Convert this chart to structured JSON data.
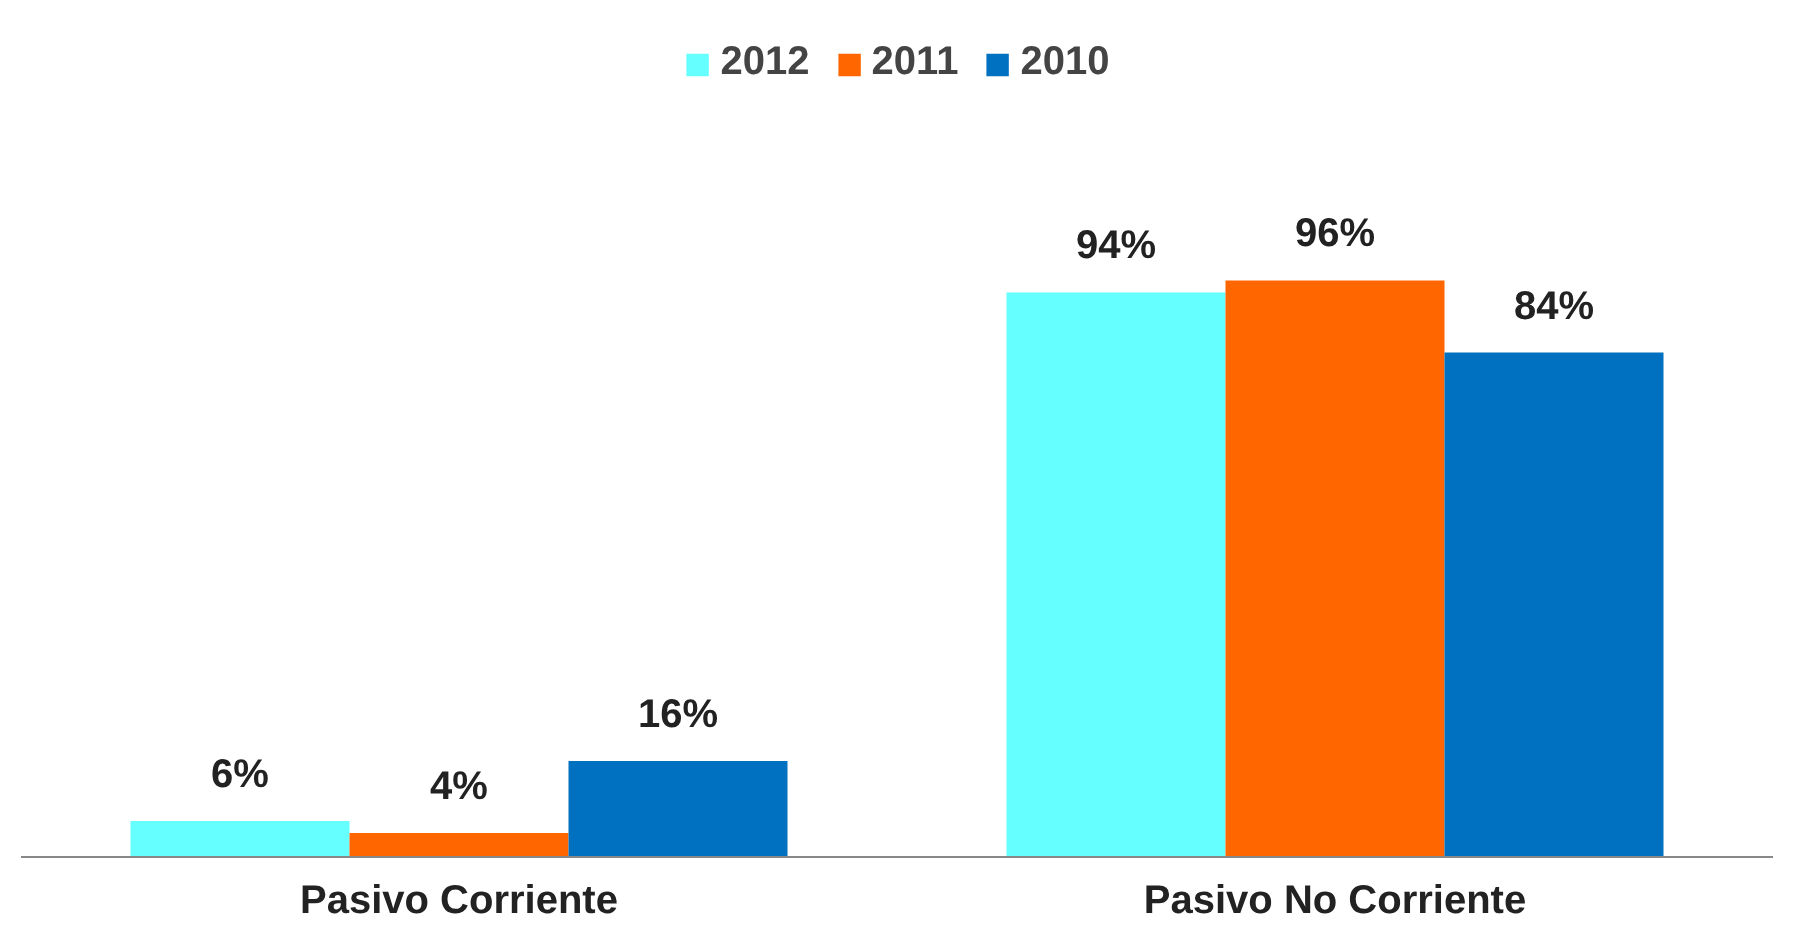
{
  "chart_data": {
    "type": "bar",
    "categories": [
      "Pasivo Corriente",
      "Pasivo No Corriente"
    ],
    "series": [
      {
        "name": "2012",
        "color": "#66ffff",
        "values": [
          6,
          94
        ],
        "value_labels": [
          "6%",
          "94%"
        ]
      },
      {
        "name": "2011",
        "color": "#ff6600",
        "values": [
          4,
          96
        ],
        "value_labels": [
          "4%",
          "96%"
        ]
      },
      {
        "name": "2010",
        "color": "#0070c0",
        "values": [
          16,
          84
        ],
        "value_labels": [
          "16%",
          "84%"
        ]
      }
    ],
    "legend": "top"
  }
}
